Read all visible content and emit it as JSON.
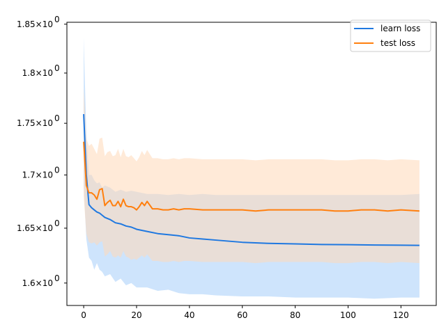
{
  "chart_data": {
    "type": "line",
    "title": "",
    "xlabel": "",
    "ylabel": "",
    "yscale": "log",
    "xlim": [
      -6.35,
      133.35
    ],
    "ylim": [
      1.58,
      1.852
    ],
    "xticks": [
      0,
      20,
      40,
      60,
      80,
      100,
      120
    ],
    "yticks": [
      {
        "value": 1.6,
        "base": "1.6"
      },
      {
        "value": 1.65,
        "base": "1.65"
      },
      {
        "value": 1.7,
        "base": "1.7"
      },
      {
        "value": 1.75,
        "base": "1.75"
      },
      {
        "value": 1.8,
        "base": "1.8"
      },
      {
        "value": 1.85,
        "base": "1.85"
      }
    ],
    "ytick_exponent": "0",
    "ytick_times": "×",
    "grid": false,
    "legend_position": "top-right",
    "series": [
      {
        "name": "learn loss",
        "color": "#1f77b4",
        "line_color": "#1f78e0",
        "band_color": "#a6cef9",
        "x": [
          0,
          1,
          2,
          3,
          4,
          5,
          6,
          7,
          8,
          10,
          12,
          14,
          16,
          18,
          20,
          24,
          28,
          32,
          36,
          40,
          45,
          50,
          60,
          70,
          80,
          90,
          100,
          110,
          120,
          127
        ],
        "mean": [
          1.759,
          1.7,
          1.672,
          1.669,
          1.667,
          1.665,
          1.664,
          1.662,
          1.66,
          1.658,
          1.655,
          1.654,
          1.652,
          1.651,
          1.649,
          1.647,
          1.645,
          1.644,
          1.643,
          1.641,
          1.64,
          1.639,
          1.637,
          1.636,
          1.6355,
          1.635,
          1.6348,
          1.6345,
          1.6343,
          1.6342
        ],
        "upper": [
          1.836,
          1.74,
          1.7,
          1.7,
          1.695,
          1.692,
          1.693,
          1.688,
          1.69,
          1.688,
          1.684,
          1.686,
          1.684,
          1.685,
          1.684,
          1.682,
          1.682,
          1.681,
          1.682,
          1.681,
          1.682,
          1.681,
          1.681,
          1.681,
          1.681,
          1.681,
          1.681,
          1.681,
          1.681,
          1.682
        ],
        "lower": [
          1.69,
          1.64,
          1.623,
          1.62,
          1.612,
          1.618,
          1.612,
          1.61,
          1.606,
          1.608,
          1.601,
          1.604,
          1.598,
          1.6,
          1.596,
          1.596,
          1.593,
          1.594,
          1.591,
          1.59,
          1.59,
          1.589,
          1.588,
          1.588,
          1.587,
          1.587,
          1.587,
          1.586,
          1.587,
          1.587
        ]
      },
      {
        "name": "test loss",
        "color": "#ff7f0e",
        "line_color": "#ff7f0e",
        "band_color": "#ffd9b8",
        "x": [
          0,
          1,
          2,
          3,
          4,
          5,
          6,
          7,
          8,
          9,
          10,
          11,
          12,
          13,
          14,
          15,
          16,
          17,
          18,
          19,
          20,
          21,
          22,
          23,
          24,
          26,
          28,
          30,
          32,
          34,
          36,
          38,
          40,
          45,
          50,
          55,
          60,
          65,
          70,
          75,
          80,
          85,
          90,
          95,
          100,
          105,
          110,
          115,
          120,
          127
        ],
        "mean": [
          1.732,
          1.69,
          1.683,
          1.683,
          1.681,
          1.677,
          1.686,
          1.687,
          1.671,
          1.674,
          1.676,
          1.671,
          1.671,
          1.675,
          1.67,
          1.677,
          1.671,
          1.67,
          1.67,
          1.669,
          1.667,
          1.67,
          1.674,
          1.671,
          1.675,
          1.668,
          1.668,
          1.667,
          1.667,
          1.668,
          1.667,
          1.668,
          1.668,
          1.667,
          1.667,
          1.667,
          1.667,
          1.666,
          1.667,
          1.667,
          1.667,
          1.667,
          1.667,
          1.666,
          1.666,
          1.667,
          1.667,
          1.666,
          1.667,
          1.666
        ],
        "upper": [
          1.785,
          1.735,
          1.728,
          1.73,
          1.725,
          1.72,
          1.735,
          1.736,
          1.718,
          1.722,
          1.723,
          1.718,
          1.719,
          1.725,
          1.717,
          1.725,
          1.718,
          1.717,
          1.719,
          1.716,
          1.713,
          1.717,
          1.723,
          1.719,
          1.724,
          1.716,
          1.716,
          1.715,
          1.715,
          1.716,
          1.715,
          1.716,
          1.716,
          1.715,
          1.715,
          1.715,
          1.715,
          1.714,
          1.715,
          1.715,
          1.715,
          1.715,
          1.715,
          1.714,
          1.714,
          1.715,
          1.715,
          1.714,
          1.715,
          1.714
        ],
        "lower": [
          1.68,
          1.645,
          1.637,
          1.636,
          1.637,
          1.634,
          1.637,
          1.638,
          1.624,
          1.626,
          1.629,
          1.624,
          1.623,
          1.625,
          1.623,
          1.629,
          1.624,
          1.623,
          1.621,
          1.622,
          1.621,
          1.623,
          1.625,
          1.623,
          1.626,
          1.62,
          1.62,
          1.619,
          1.619,
          1.62,
          1.619,
          1.62,
          1.62,
          1.619,
          1.619,
          1.619,
          1.619,
          1.618,
          1.619,
          1.619,
          1.619,
          1.619,
          1.619,
          1.618,
          1.618,
          1.619,
          1.619,
          1.618,
          1.619,
          1.618
        ]
      }
    ]
  }
}
